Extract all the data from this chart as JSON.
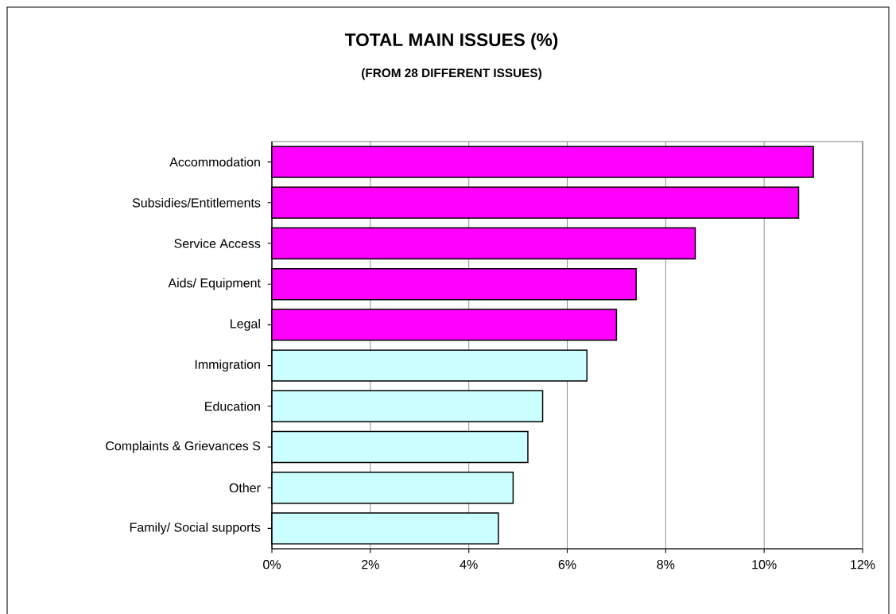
{
  "chart_data": {
    "type": "bar",
    "orientation": "horizontal",
    "title": "TOTAL MAIN ISSUES (%)",
    "subtitle": "(FROM 28 DIFFERENT ISSUES)",
    "categories": [
      "Accommodation",
      "Subsidies/Entitlements",
      "Service Access",
      "Aids/ Equipment",
      "Legal",
      "Immigration",
      "Education",
      "Complaints & Grievances S",
      "Other",
      "Family/ Social supports"
    ],
    "values": [
      11.0,
      10.7,
      8.6,
      7.4,
      7.0,
      6.4,
      5.5,
      5.2,
      4.9,
      4.6
    ],
    "colors": [
      "#ff00ff",
      "#ff00ff",
      "#ff00ff",
      "#ff00ff",
      "#ff00ff",
      "#ccffff",
      "#ccffff",
      "#ccffff",
      "#ccffff",
      "#ccffff"
    ],
    "xlim": [
      0,
      12
    ],
    "xticks": [
      {
        "value": 0,
        "label": "0%"
      },
      {
        "value": 2,
        "label": "2%"
      },
      {
        "value": 4,
        "label": "4%"
      },
      {
        "value": 6,
        "label": "6%"
      },
      {
        "value": 8,
        "label": "8%"
      },
      {
        "value": 10,
        "label": "10%"
      },
      {
        "value": 12,
        "label": "12%"
      }
    ],
    "grid": "x"
  }
}
